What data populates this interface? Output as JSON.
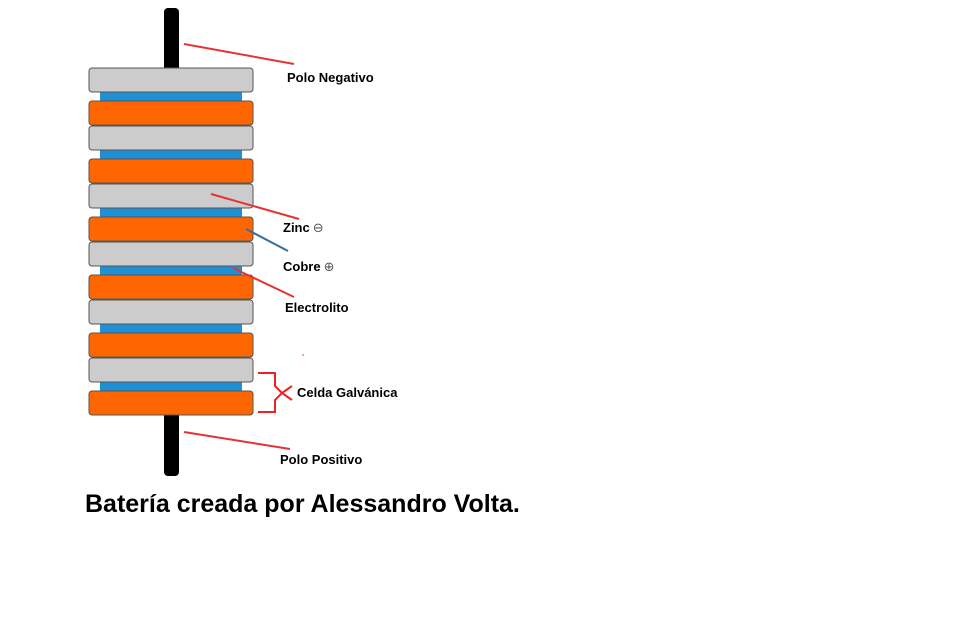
{
  "labels": {
    "polo_negativo": "Polo Negativo",
    "zinc": "Zinc",
    "zinc_symbol": "⊖",
    "cobre": "Cobre",
    "cobre_symbol": "⊕",
    "electrolito": "Electrolito",
    "celda_galvanica": "Celda Galvánica",
    "polo_positivo": "Polo Positivo"
  },
  "caption": "Batería creada por Alessandro Volta.",
  "colors": {
    "zinc": "#cccccc",
    "cobre": "#ff6600",
    "electrolito": "#1e90d6",
    "terminal": "#000000",
    "pointer_red": "#e53333",
    "pointer_blue": "#3a6e96",
    "bracket": "#ee2222"
  },
  "stack": [
    "zinc",
    "cobre",
    "zinc",
    "cobre",
    "zinc",
    "cobre",
    "zinc",
    "cobre",
    "zinc",
    "cobre",
    "zinc",
    "cobre"
  ]
}
